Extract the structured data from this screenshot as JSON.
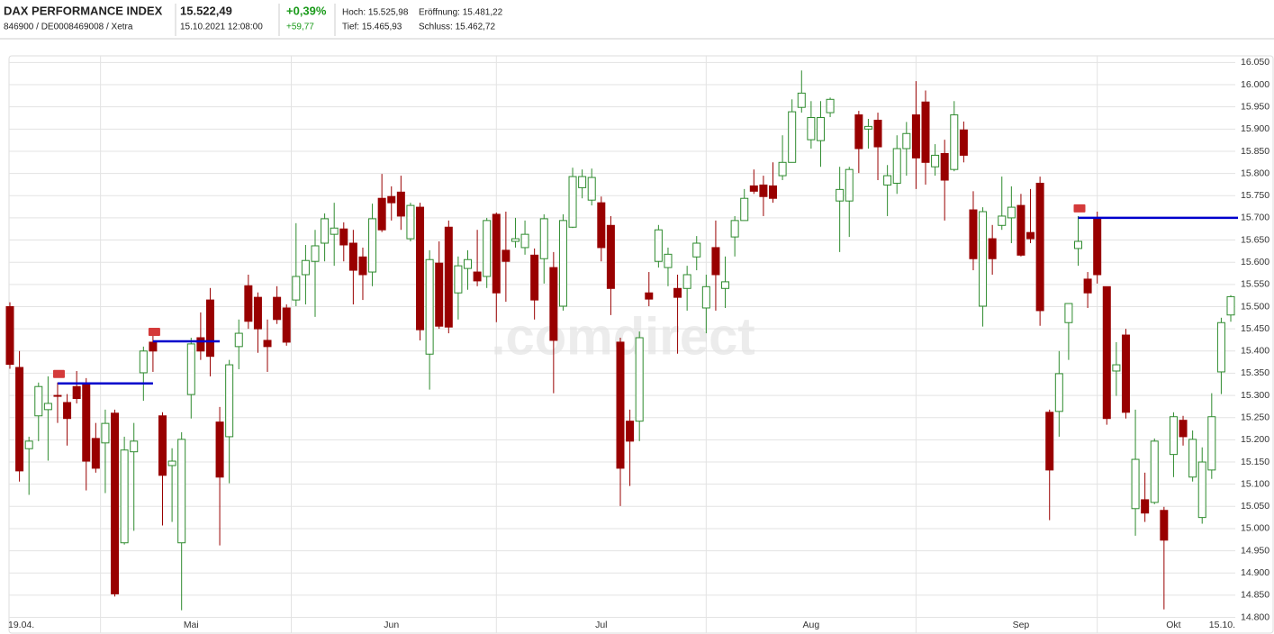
{
  "header": {
    "name": "DAX PERFORMANCE INDEX",
    "ids": "846900 / DE0008469008 / Xetra",
    "price": "15.522,49",
    "timestamp": "15.10.2021 12:08:00",
    "change_pct": "+0,39%",
    "change_abs": "+59,77",
    "high": "Hoch: 15.525,98",
    "open": "Eröffnung: 15.481,22",
    "low": "Tief: 15.465,93",
    "prev_close": "Schluss: 15.462,72"
  },
  "chart_data": {
    "type": "candlestick",
    "watermark": ".comdirect",
    "categories": [
      "19.04.",
      null,
      null,
      null,
      null,
      null,
      null,
      null,
      null,
      null,
      null,
      null,
      null,
      null,
      null,
      null,
      null,
      null,
      null,
      "Mai",
      null,
      null,
      null,
      null,
      null,
      null,
      null,
      null,
      null,
      null,
      null,
      null,
      null,
      null,
      null,
      null,
      null,
      null,
      null,
      null,
      "Jun",
      null,
      null,
      null,
      null,
      null,
      null,
      null,
      null,
      null,
      null,
      null,
      null,
      null,
      null,
      null,
      null,
      null,
      null,
      null,
      null,
      null,
      "Jul",
      null,
      null,
      null,
      null,
      null,
      null,
      null,
      null,
      null,
      null,
      null,
      null,
      null,
      null,
      null,
      null,
      null,
      null,
      null,
      null,
      null,
      "Aug",
      null,
      null,
      null,
      null,
      null,
      null,
      null,
      null,
      null,
      null,
      null,
      null,
      null,
      null,
      null,
      null,
      null,
      null,
      null,
      null,
      null,
      "Sep",
      null,
      null,
      null,
      null,
      null,
      null,
      null,
      null,
      null,
      null,
      null,
      null,
      null,
      null,
      null,
      "Okt",
      null,
      null,
      null,
      null,
      null,
      "15.10."
    ],
    "series": [
      {
        "up_color": "#2e8b2e",
        "down_color": "#990000",
        "open": [
          15500,
          15363,
          15180,
          15254,
          15268,
          15300,
          15284,
          15320,
          15325,
          15203,
          15193,
          15260,
          14968,
          15173,
          15351,
          15420,
          15254,
          15142,
          14968,
          15302,
          15430,
          15515,
          15240,
          15207,
          15410,
          15547,
          15521,
          15424,
          15521,
          15497,
          15515,
          15572,
          15602,
          15643,
          15663,
          15675,
          15643,
          15612,
          15578,
          15744,
          15748,
          15758,
          15653,
          15724,
          15393,
          15598,
          15679,
          15531,
          15586,
          15578,
          15568,
          15708,
          15627,
          15647,
          15633,
          15616,
          15608,
          15588,
          15501,
          15679,
          15768,
          15740,
          15734,
          15683,
          15420,
          15242,
          15242,
          15531,
          15602,
          15588,
          15541,
          15541,
          15612,
          15497,
          15633,
          15541,
          15657,
          15694,
          15772,
          15774,
          15772,
          15795,
          15825,
          15949,
          15876,
          15874,
          15937,
          15738,
          15738,
          15932,
          15900,
          15920,
          15774,
          15778,
          15856,
          15932,
          15961,
          15815,
          15845,
          15809,
          15898,
          15718,
          15501,
          15653,
          15683,
          15700,
          15728,
          15667,
          15778,
          15262,
          15264,
          15464,
          15631,
          15562,
          15700,
          15545,
          15355,
          15436,
          15045,
          15065,
          15059,
          15041,
          15167,
          15244,
          15116,
          15025,
          15132,
          15353,
          15481.22
        ],
        "high": [
          15510,
          15400,
          15207,
          15329,
          15343,
          15329,
          15303,
          15355,
          15339,
          15238,
          15268,
          15268,
          15207,
          15238,
          15410,
          15440,
          15262,
          15181,
          15217,
          15430,
          15487,
          15542,
          15274,
          15380,
          15471,
          15572,
          15532,
          15471,
          15546,
          15505,
          15688,
          15639,
          15673,
          15710,
          15734,
          15690,
          15673,
          15633,
          15732,
          15799,
          15771,
          15795,
          15734,
          15734,
          15627,
          15647,
          15694,
          15613,
          15627,
          15673,
          15700,
          15712,
          15714,
          15700,
          15694,
          15631,
          15708,
          15623,
          15708,
          15813,
          15809,
          15811,
          15748,
          15704,
          15430,
          15268,
          15444,
          15578,
          15684,
          15633,
          15572,
          15592,
          15659,
          15572,
          15694,
          15613,
          15704,
          15765,
          15809,
          15795,
          15825,
          15886,
          15967,
          16032,
          15963,
          15963,
          15971,
          15815,
          15815,
          15941,
          15923,
          15937,
          15819,
          15886,
          15916,
          16008,
          15987,
          15866,
          15876,
          15963,
          15917,
          15760,
          15724,
          15684,
          15793,
          15771,
          15754,
          15765,
          15793,
          15268,
          15400,
          15507,
          15704,
          15578,
          15714,
          15545,
          15420,
          15450,
          15268,
          15126,
          15203,
          15049,
          15262,
          15254,
          15221,
          15183,
          15305,
          15475,
          15525.98
        ],
        "low": [
          15360,
          15106,
          15076,
          15197,
          15153,
          15238,
          15187,
          15282,
          15086,
          15126,
          15080,
          14847,
          14964,
          14995,
          15288,
          15353,
          15007,
          15015,
          14816,
          15248,
          15380,
          15343,
          14962,
          15102,
          15359,
          15450,
          15396,
          15353,
          15461,
          15412,
          15501,
          15505,
          15477,
          15602,
          15592,
          15602,
          15505,
          15515,
          15546,
          15668,
          15694,
          15673,
          15647,
          15424,
          15313,
          15450,
          15440,
          15471,
          15538,
          15546,
          15542,
          15465,
          15511,
          15633,
          15617,
          15471,
          15552,
          15305,
          15491,
          15677,
          15744,
          15728,
          15602,
          15481,
          15051,
          15096,
          15197,
          15501,
          15588,
          15546,
          15394,
          15491,
          15582,
          15440,
          15491,
          15497,
          15613,
          15694,
          15754,
          15704,
          15734,
          15785,
          15825,
          15937,
          15856,
          15815,
          15927,
          15623,
          15657,
          15801,
          15856,
          15785,
          15704,
          15754,
          15795,
          15765,
          15775,
          15795,
          15694,
          15805,
          15825,
          15582,
          15455,
          15572,
          15673,
          15643,
          15613,
          15643,
          15457,
          15019,
          15207,
          15380,
          15592,
          15497,
          15552,
          15234,
          15299,
          15248,
          14984,
          15015,
          15055,
          14818,
          15116,
          15187,
          15106,
          15011,
          15112,
          15303,
          15465.93
        ],
        "close": [
          15370,
          15130,
          15197,
          15320,
          15282,
          15298,
          15248,
          15293,
          15152,
          15136,
          15237,
          14853,
          15177,
          15197,
          15400,
          15400,
          15120,
          15152,
          15201,
          15416,
          15400,
          15388,
          15116,
          15369,
          15440,
          15467,
          15450,
          15410,
          15471,
          15420,
          15568,
          15604,
          15637,
          15698,
          15677,
          15639,
          15582,
          15572,
          15698,
          15673,
          15734,
          15704,
          15728,
          15448,
          15606,
          15456,
          15454,
          15592,
          15606,
          15558,
          15694,
          15531,
          15602,
          15653,
          15663,
          15515,
          15698,
          15424,
          15694,
          15793,
          15793,
          15791,
          15633,
          15541,
          15136,
          15197,
          15430,
          15517,
          15673,
          15618,
          15521,
          15572,
          15643,
          15545,
          15572,
          15556,
          15694,
          15744,
          15760,
          15748,
          15744,
          15825,
          15939,
          15981,
          15926,
          15926,
          15967,
          15764,
          15809,
          15856,
          15906,
          15860,
          15795,
          15856,
          15890,
          15835,
          15825,
          15841,
          15785,
          15932,
          15841,
          15608,
          15714,
          15608,
          15704,
          15724,
          15616,
          15653,
          15491,
          15132,
          15349,
          15507,
          15647,
          15531,
          15572,
          15248,
          15369,
          15262,
          15156,
          15035,
          15197,
          14974,
          15252,
          15207,
          15201,
          15150,
          15252,
          15464,
          15522.49
        ]
      }
    ],
    "levels": [
      {
        "value": 15327,
        "from": 5,
        "to": 15
      },
      {
        "value": 15422,
        "from": 15,
        "to": 22
      },
      {
        "value": 15700,
        "from": 112,
        "to": 128
      }
    ],
    "level_color": "#0000cc",
    "ylim": [
      14795,
      16065
    ],
    "yticks": [
      {
        "value": 14800,
        "label": "14.800"
      },
      {
        "value": 14850,
        "label": "14.850"
      },
      {
        "value": 14900,
        "label": "14.900"
      },
      {
        "value": 14950,
        "label": "14.950"
      },
      {
        "value": 15000,
        "label": "15.000"
      },
      {
        "value": 15050,
        "label": "15.050"
      },
      {
        "value": 15100,
        "label": "15.100"
      },
      {
        "value": 15150,
        "label": "15.150"
      },
      {
        "value": 15200,
        "label": "15.200"
      },
      {
        "value": 15250,
        "label": "15.250"
      },
      {
        "value": 15300,
        "label": "15.300"
      },
      {
        "value": 15350,
        "label": "15.350"
      },
      {
        "value": 15400,
        "label": "15.400"
      },
      {
        "value": 15450,
        "label": "15.450"
      },
      {
        "value": 15500,
        "label": "15.500"
      },
      {
        "value": 15550,
        "label": "15.550"
      },
      {
        "value": 15600,
        "label": "15.600"
      },
      {
        "value": 15650,
        "label": "15.650"
      },
      {
        "value": 15700,
        "label": "15.700"
      },
      {
        "value": 15750,
        "label": "15.750"
      },
      {
        "value": 15800,
        "label": "15.800"
      },
      {
        "value": 15850,
        "label": "15.850"
      },
      {
        "value": 15900,
        "label": "15.900"
      },
      {
        "value": 15950,
        "label": "15.950"
      },
      {
        "value": 16000,
        "label": "16.000"
      },
      {
        "value": 16050,
        "label": "16.050"
      }
    ],
    "grid": true
  }
}
